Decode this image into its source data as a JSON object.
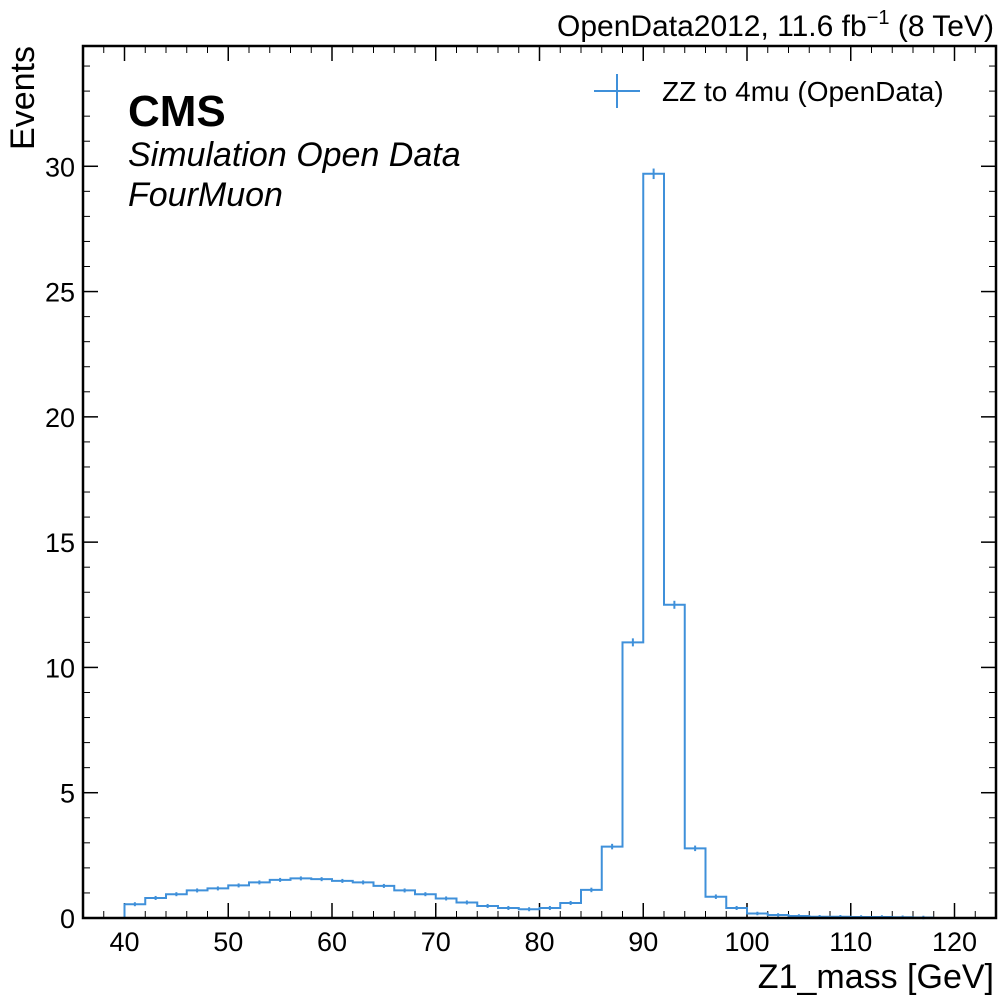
{
  "chart_data": {
    "type": "histogram",
    "xlabel": "Z1_mass [GeV]",
    "ylabel": "Events",
    "xlim": [
      36,
      124
    ],
    "ylim": [
      0,
      34.8
    ],
    "xticks": [
      40,
      50,
      60,
      70,
      80,
      90,
      100,
      110,
      120
    ],
    "yticks": [
      0,
      5,
      10,
      15,
      20,
      25,
      30
    ],
    "lumi_text": {
      "prefix": "OpenData2012, 11.6 fb",
      "superscript": "−1",
      "suffix": " (8 TeV)"
    },
    "experiment": "CMS",
    "subtitle_lines": [
      "Simulation Open Data",
      "FourMuon"
    ],
    "legend": {
      "position": "top-right",
      "entries": [
        "ZZ to 4mu (OpenData)"
      ]
    },
    "series": [
      {
        "name": "ZZ to 4mu (OpenData)",
        "color": "#3f90da",
        "bin_edges": [
          40,
          42,
          44,
          46,
          48,
          50,
          52,
          54,
          56,
          58,
          60,
          62,
          64,
          66,
          68,
          70,
          72,
          74,
          76,
          78,
          80,
          82,
          84,
          86,
          88,
          90,
          92,
          94,
          96,
          98,
          100,
          102,
          104,
          106,
          108,
          110,
          112,
          114,
          116,
          118
        ],
        "values": [
          0.55,
          0.8,
          0.95,
          1.1,
          1.18,
          1.3,
          1.42,
          1.52,
          1.58,
          1.55,
          1.48,
          1.42,
          1.28,
          1.1,
          0.95,
          0.78,
          0.62,
          0.48,
          0.4,
          0.35,
          0.4,
          0.6,
          1.12,
          2.85,
          11.0,
          29.7,
          12.5,
          2.78,
          0.85,
          0.4,
          0.18,
          0.12,
          0.08,
          0.05,
          0.05,
          0.04,
          0.04,
          0.03,
          0.02
        ],
        "errors": [
          0.02,
          0.02,
          0.02,
          0.02,
          0.02,
          0.02,
          0.02,
          0.02,
          0.02,
          0.02,
          0.02,
          0.02,
          0.02,
          0.02,
          0.02,
          0.02,
          0.02,
          0.02,
          0.02,
          0.02,
          0.02,
          0.02,
          0.03,
          0.05,
          0.1,
          0.15,
          0.1,
          0.05,
          0.03,
          0.02,
          0.01,
          0.01,
          0.01,
          0.01,
          0.01,
          0.01,
          0.01,
          0.01,
          0.01
        ]
      }
    ]
  }
}
